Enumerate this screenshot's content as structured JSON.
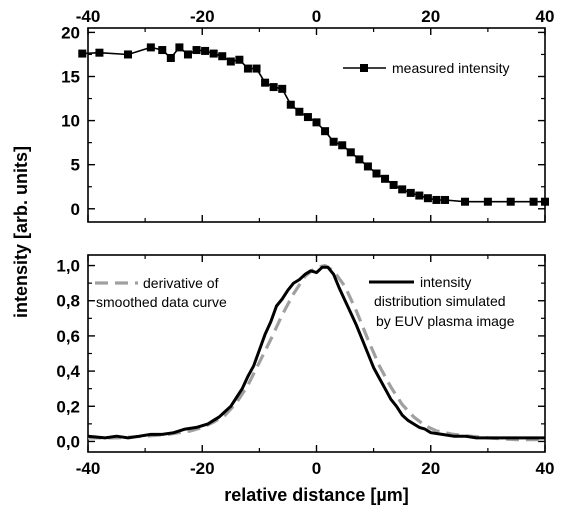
{
  "chart_data": [
    {
      "type": "line",
      "title": "",
      "xlabel": "relative distance [µm]",
      "ylabel": "intensity [arb. units]",
      "xlim": [
        -40,
        40
      ],
      "ylim": [
        -1.5,
        20.5
      ],
      "xticks": [
        -40,
        -20,
        0,
        20,
        40
      ],
      "yticks": [
        0,
        5,
        10,
        15,
        20
      ],
      "ytick_labels": [
        "0",
        "5",
        "10",
        "15",
        "20"
      ],
      "top_axis_ticks": [
        "-40",
        "-20",
        "0",
        "20",
        "40"
      ],
      "legend_position": "top-right",
      "grid": false,
      "series": [
        {
          "name": "measured intensity",
          "color": "#000000",
          "marker": "square",
          "x": [
            -41,
            -38,
            -33,
            -29,
            -27,
            -25.5,
            -24,
            -22.5,
            -21,
            -19.5,
            -18,
            -16.5,
            -15,
            -13.5,
            -12,
            -10.5,
            -9,
            -7.5,
            -6,
            -4.5,
            -3,
            -1.5,
            0,
            1.5,
            3,
            4.5,
            6,
            7.5,
            9,
            10.5,
            12,
            13.5,
            15,
            16.5,
            18,
            19.5,
            21,
            22.5,
            26,
            30,
            34,
            38,
            40
          ],
          "y": [
            17.6,
            17.7,
            17.5,
            18.3,
            18.0,
            17.1,
            18.3,
            17.5,
            18.0,
            17.9,
            17.6,
            17.3,
            16.7,
            16.9,
            15.9,
            15.9,
            14.3,
            13.8,
            13.6,
            11.8,
            11.0,
            10.4,
            9.8,
            8.8,
            7.6,
            7.2,
            6.4,
            5.6,
            4.8,
            4.0,
            3.4,
            2.7,
            2.2,
            1.8,
            1.5,
            1.2,
            1.0,
            1.0,
            0.8,
            0.8,
            0.8,
            0.8,
            0.8
          ]
        }
      ]
    },
    {
      "type": "line",
      "title": "",
      "xlabel": "relative distance [µm]",
      "ylabel": "intensity [arb. units]",
      "xlim": [
        -40,
        40
      ],
      "ylim": [
        -0.06,
        1.06
      ],
      "xticks": [
        -40,
        -20,
        0,
        20,
        40
      ],
      "yticks": [
        0.0,
        0.2,
        0.4,
        0.6,
        0.8,
        1.0
      ],
      "ytick_labels": [
        "0,0",
        "0,2",
        "0,4",
        "0,6",
        "0,8",
        "1,0"
      ],
      "grid": false,
      "legends": [
        {
          "position": "top-left",
          "label": "derivative of smoothed data curve",
          "lines": [
            "derivative of",
            "smoothed data curve"
          ],
          "style": "dashed",
          "color": "#a0a0a0"
        },
        {
          "position": "top-right",
          "label": "intensity distribution simulated by EUV plasma image",
          "lines": [
            "intensity",
            "distribution simulated",
            "by EUV plasma image"
          ],
          "style": "solid",
          "color": "#000000"
        }
      ],
      "series": [
        {
          "name": "derivative of smoothed data curve",
          "color": "#a0a0a0",
          "style": "dashed",
          "x": [
            -40,
            -35,
            -30,
            -26,
            -22,
            -20,
            -18,
            -16,
            -14,
            -12,
            -10,
            -8,
            -6,
            -4,
            -2,
            0,
            1.5,
            3,
            5,
            7,
            9,
            11,
            13,
            15,
            17,
            19,
            21,
            24,
            27,
            30,
            35,
            40
          ],
          "y": [
            0.02,
            0.02,
            0.03,
            0.04,
            0.06,
            0.08,
            0.11,
            0.15,
            0.22,
            0.32,
            0.45,
            0.58,
            0.72,
            0.84,
            0.94,
            0.99,
            1.0,
            0.97,
            0.88,
            0.74,
            0.58,
            0.43,
            0.31,
            0.21,
            0.14,
            0.09,
            0.06,
            0.04,
            0.03,
            0.02,
            0.01,
            0.01
          ]
        },
        {
          "name": "intensity distribution simulated by EUV plasma image",
          "color": "#000000",
          "style": "solid",
          "x": [
            -40,
            -37,
            -35,
            -33,
            -31,
            -29,
            -27,
            -25,
            -23,
            -21,
            -19,
            -18,
            -17,
            -16,
            -15,
            -14,
            -13,
            -12,
            -11,
            -10,
            -9,
            -8,
            -7,
            -6,
            -5,
            -4,
            -3,
            -2,
            -1,
            0,
            1,
            2,
            3,
            4,
            5,
            6,
            7,
            8,
            9,
            10,
            11,
            12,
            13,
            14,
            15,
            16,
            17,
            18,
            19,
            20,
            22,
            24,
            26,
            28,
            30,
            33,
            36,
            40
          ],
          "y": [
            0.03,
            0.02,
            0.03,
            0.02,
            0.03,
            0.04,
            0.04,
            0.05,
            0.07,
            0.08,
            0.1,
            0.12,
            0.14,
            0.17,
            0.2,
            0.25,
            0.3,
            0.37,
            0.43,
            0.52,
            0.61,
            0.68,
            0.77,
            0.81,
            0.86,
            0.9,
            0.92,
            0.95,
            0.97,
            0.96,
            0.99,
            0.99,
            0.95,
            0.87,
            0.8,
            0.73,
            0.66,
            0.58,
            0.5,
            0.42,
            0.36,
            0.3,
            0.24,
            0.2,
            0.15,
            0.12,
            0.1,
            0.08,
            0.07,
            0.05,
            0.04,
            0.03,
            0.03,
            0.02,
            0.02,
            0.02,
            0.02,
            0.02
          ]
        }
      ]
    }
  ]
}
